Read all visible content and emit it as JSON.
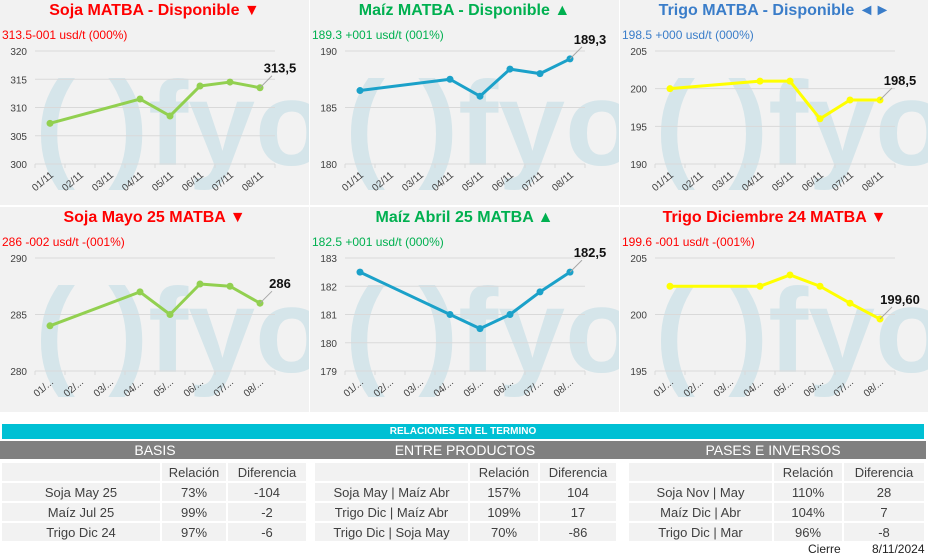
{
  "colors": {
    "up": "#00b050",
    "down": "#ff0000",
    "flat": "#3a7dc9",
    "soja": "#92d050",
    "maiz": "#1ba1c9",
    "trigo": "#ffff00",
    "teal": "#00c0d4",
    "header": "#808080"
  },
  "watermark": "( )fyo",
  "charts": [
    {
      "title": "Soja MATBA - Disponible ▼",
      "subtitle": "313.5-001 usd/t (000%)",
      "trend": "down",
      "series_color": "soja",
      "chart_data": {
        "type": "line",
        "categories": [
          "01/11",
          "02/11",
          "03/11",
          "04/11",
          "05/11",
          "06/11",
          "07/11",
          "08/11"
        ],
        "values": [
          307.2,
          null,
          null,
          311.5,
          308.5,
          313.8,
          314.5,
          313.5
        ],
        "ylim": [
          300,
          320
        ],
        "yticks": [
          300,
          305,
          310,
          315,
          320
        ],
        "last_label": "313,5"
      }
    },
    {
      "title": "Maíz MATBA - Disponible ▲",
      "subtitle": "189.3 +001 usd/t (001%)",
      "trend": "up",
      "series_color": "maiz",
      "chart_data": {
        "type": "line",
        "categories": [
          "01/11",
          "02/11",
          "03/11",
          "04/11",
          "05/11",
          "06/11",
          "07/11",
          "08/11"
        ],
        "values": [
          186.5,
          null,
          null,
          187.5,
          186,
          188.4,
          188,
          189.3
        ],
        "ylim": [
          180,
          190
        ],
        "yticks": [
          180,
          185,
          190
        ],
        "last_label": "189,3"
      }
    },
    {
      "title": "Trigo MATBA - Disponible ◄►",
      "subtitle": "198.5 +000 usd/t (000%)",
      "trend": "flat",
      "series_color": "trigo",
      "chart_data": {
        "type": "line",
        "categories": [
          "01/11",
          "02/11",
          "03/11",
          "04/11",
          "05/11",
          "06/11",
          "07/11",
          "08/11"
        ],
        "values": [
          200,
          null,
          null,
          201,
          201,
          196,
          198.5,
          198.5
        ],
        "ylim": [
          190,
          205
        ],
        "yticks": [
          190,
          195,
          200,
          205
        ],
        "last_label": "198,5"
      }
    },
    {
      "title": "Soja Mayo 25 MATBA ▼",
      "subtitle": "286 -002 usd/t -(001%)",
      "trend": "down",
      "series_color": "soja",
      "chart_data": {
        "type": "line",
        "categories": [
          "01/...",
          "02/...",
          "03/...",
          "04/...",
          "05/...",
          "06/...",
          "07/...",
          "08/..."
        ],
        "values": [
          284,
          null,
          null,
          287,
          285,
          287.7,
          287.5,
          286
        ],
        "ylim": [
          280,
          290
        ],
        "yticks": [
          280,
          285,
          290
        ],
        "last_label": "286"
      }
    },
    {
      "title": "Maíz Abril 25 MATBA ▲",
      "subtitle": "182.5 +001 usd/t (000%)",
      "trend": "up",
      "series_color": "maiz",
      "chart_data": {
        "type": "line",
        "categories": [
          "01/...",
          "02/...",
          "03/...",
          "04/...",
          "05/...",
          "06/...",
          "07/...",
          "08/..."
        ],
        "values": [
          182.5,
          null,
          null,
          181,
          180.5,
          181,
          181.8,
          182.5
        ],
        "ylim": [
          179,
          183
        ],
        "yticks": [
          179,
          180,
          181,
          182,
          183
        ],
        "last_label": "182,5"
      }
    },
    {
      "title": "Trigo Diciembre 24 MATBA ▼",
      "subtitle": "199.6 -001 usd/t -(001%)",
      "trend": "down",
      "series_color": "trigo",
      "chart_data": {
        "type": "line",
        "categories": [
          "01/...",
          "02/...",
          "03/...",
          "04/...",
          "05/...",
          "06/...",
          "07/...",
          "08/..."
        ],
        "values": [
          202.5,
          null,
          null,
          202.5,
          203.5,
          202.5,
          201,
          199.6
        ],
        "ylim": [
          195,
          205
        ],
        "yticks": [
          195,
          200,
          205
        ],
        "last_label": "199,60"
      }
    }
  ],
  "relaciones": {
    "title": "RELACIONES EN EL TERMINO",
    "sections": [
      {
        "title": "BASIS",
        "headers": [
          "",
          "Relación",
          "Diferencia"
        ],
        "rows": [
          [
            "Soja May 25",
            "73%",
            "-104"
          ],
          [
            "Maíz Jul 25",
            "99%",
            "-2"
          ],
          [
            "Trigo Dic 24",
            "97%",
            "-6"
          ]
        ]
      },
      {
        "title": "ENTRE PRODUCTOS",
        "headers": [
          "",
          "Relación",
          "Diferencia"
        ],
        "rows": [
          [
            "Soja May | Maíz Abr",
            "157%",
            "104"
          ],
          [
            "Trigo Dic | Maíz Abr",
            "109%",
            "17"
          ],
          [
            "Trigo Dic | Soja May",
            "70%",
            "-86"
          ]
        ]
      },
      {
        "title": "PASES E INVERSOS",
        "headers": [
          "",
          "Relación",
          "Diferencia"
        ],
        "rows": [
          [
            "Soja Nov | May",
            "110%",
            "28"
          ],
          [
            "Maíz Dic | Abr",
            "104%",
            "7"
          ],
          [
            "Trigo Dic | Mar",
            "96%",
            "-8"
          ]
        ]
      }
    ]
  },
  "footer": {
    "label": "Cierre",
    "date": "8/11/2024"
  }
}
